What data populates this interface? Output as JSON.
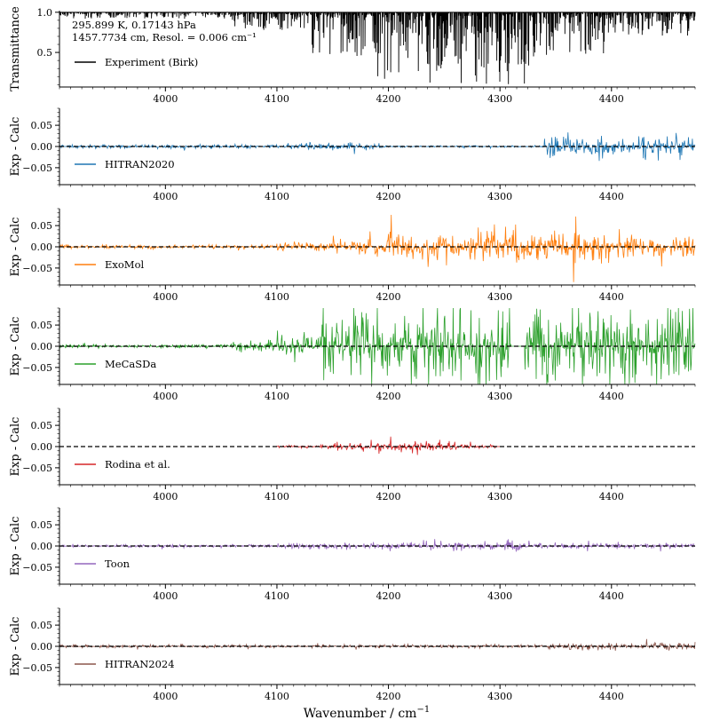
{
  "figure": {
    "xlabel": "Wavenumber / cm",
    "xlabel_sup": "−1"
  },
  "chart_data": [
    {
      "type": "line",
      "title": "",
      "ylabel": "Transmittance",
      "xlim": [
        3905,
        4475
      ],
      "ylim": [
        0.07,
        1.02
      ],
      "yticks": [
        0.5,
        1.0
      ],
      "ytick_labels": [
        "0.5",
        "1.0"
      ],
      "xticks": [
        4000,
        4100,
        4200,
        4300,
        4400
      ],
      "xtick_labels": [
        "4000",
        "4100",
        "4200",
        "4300",
        "4400"
      ],
      "annotation": [
        "295.899 K, 0.17143 hPa",
        "1457.7734 cm, Resol. = 0.006 cm⁻¹"
      ],
      "series": [
        {
          "name": "Experiment (Birk)",
          "color": "#000000",
          "kind": "transmittance",
          "baseline": 1.0,
          "bands": [
            {
              "start": 3905,
              "end": 4060,
              "max_depth": 0.08
            },
            {
              "start": 4060,
              "end": 4130,
              "max_depth": 0.22
            },
            {
              "start": 4130,
              "end": 4180,
              "max_depth": 0.55
            },
            {
              "start": 4180,
              "end": 4260,
              "max_depth": 0.9
            },
            {
              "start": 4260,
              "end": 4330,
              "max_depth": 0.9
            },
            {
              "start": 4330,
              "end": 4400,
              "max_depth": 0.55
            },
            {
              "start": 4400,
              "end": 4475,
              "max_depth": 0.3
            }
          ]
        }
      ]
    },
    {
      "type": "line",
      "ylabel": "Exp - Calc",
      "xlim": [
        3905,
        4475
      ],
      "ylim": [
        -0.09,
        0.09
      ],
      "yticks": [
        -0.05,
        0.0,
        0.05
      ],
      "ytick_labels": [
        "−0.05",
        "0.00",
        "0.05"
      ],
      "xticks": [
        4000,
        4100,
        4200,
        4300,
        4400
      ],
      "xtick_labels": [
        "4000",
        "4100",
        "4200",
        "4300",
        "4400"
      ],
      "series": [
        {
          "name": "HITRAN2020",
          "color": "#1f77b4",
          "kind": "residual",
          "range": [
            3905,
            4475
          ],
          "bands": [
            {
              "start": 3905,
              "end": 4110,
              "amp": 0.006
            },
            {
              "start": 4110,
              "end": 4195,
              "amp": 0.012
            },
            {
              "start": 4195,
              "end": 4340,
              "amp": 0.003
            },
            {
              "start": 4340,
              "end": 4475,
              "amp": 0.04
            }
          ]
        }
      ]
    },
    {
      "type": "line",
      "ylabel": "Exp - Calc",
      "xlim": [
        3905,
        4475
      ],
      "ylim": [
        -0.09,
        0.09
      ],
      "yticks": [
        -0.05,
        0.0,
        0.05
      ],
      "ytick_labels": [
        "−0.05",
        "0.00",
        "0.05"
      ],
      "xticks": [
        4000,
        4100,
        4200,
        4300,
        4400
      ],
      "xtick_labels": [
        "4000",
        "4100",
        "4200",
        "4300",
        "4400"
      ],
      "series": [
        {
          "name": "ExoMol",
          "color": "#ff7f0e",
          "kind": "residual",
          "range": [
            3905,
            4475
          ],
          "bands": [
            {
              "start": 3905,
              "end": 4100,
              "amp": 0.006
            },
            {
              "start": 4100,
              "end": 4150,
              "amp": 0.015
            },
            {
              "start": 4150,
              "end": 4200,
              "amp": 0.03
            },
            {
              "start": 4200,
              "end": 4400,
              "amp": 0.055
            },
            {
              "start": 4400,
              "end": 4475,
              "amp": 0.03
            }
          ]
        }
      ]
    },
    {
      "type": "line",
      "ylabel": "Exp - Calc",
      "xlim": [
        3905,
        4475
      ],
      "ylim": [
        -0.09,
        0.09
      ],
      "yticks": [
        -0.05,
        0.0,
        0.05
      ],
      "ytick_labels": [
        "−0.05",
        "0.00",
        "0.05"
      ],
      "xticks": [
        4000,
        4100,
        4200,
        4300,
        4400
      ],
      "xtick_labels": [
        "4000",
        "4100",
        "4200",
        "4300",
        "4400"
      ],
      "series": [
        {
          "name": "MeCaSDa",
          "color": "#2ca02c",
          "kind": "residual",
          "range": [
            3905,
            4475
          ],
          "bands": [
            {
              "start": 3905,
              "end": 4060,
              "amp": 0.006
            },
            {
              "start": 4060,
              "end": 4100,
              "amp": 0.02
            },
            {
              "start": 4100,
              "end": 4140,
              "amp": 0.045
            },
            {
              "start": 4140,
              "end": 4310,
              "amp": 0.12
            },
            {
              "start": 4310,
              "end": 4322,
              "amp": 0.0
            },
            {
              "start": 4322,
              "end": 4475,
              "amp": 0.12
            }
          ]
        }
      ]
    },
    {
      "type": "line",
      "ylabel": "Exp - Calc",
      "xlim": [
        3905,
        4475
      ],
      "ylim": [
        -0.09,
        0.09
      ],
      "yticks": [
        -0.05,
        0.0,
        0.05
      ],
      "ytick_labels": [
        "−0.05",
        "0.00",
        "0.05"
      ],
      "xticks": [
        4000,
        4100,
        4200,
        4300,
        4400
      ],
      "xtick_labels": [
        "4000",
        "4100",
        "4200",
        "4300",
        "4400"
      ],
      "series": [
        {
          "name": "Rodina et al.",
          "color": "#d62728",
          "kind": "residual",
          "range": [
            4100,
            4300
          ],
          "bands": [
            {
              "start": 4100,
              "end": 4150,
              "amp": 0.005
            },
            {
              "start": 4150,
              "end": 4260,
              "amp": 0.018
            },
            {
              "start": 4260,
              "end": 4300,
              "amp": 0.008
            }
          ]
        }
      ]
    },
    {
      "type": "line",
      "ylabel": "Exp - Calc",
      "xlim": [
        3905,
        4475
      ],
      "ylim": [
        -0.09,
        0.09
      ],
      "yticks": [
        -0.05,
        0.0,
        0.05
      ],
      "ytick_labels": [
        "−0.05",
        "0.00",
        "0.05"
      ],
      "xticks": [
        4000,
        4100,
        4200,
        4300,
        4400
      ],
      "xtick_labels": [
        "4000",
        "4100",
        "4200",
        "4300",
        "4400"
      ],
      "series": [
        {
          "name": "Toon",
          "color": "#9467bd",
          "kind": "residual",
          "range": [
            3905,
            4475
          ],
          "bands": [
            {
              "start": 3905,
              "end": 4100,
              "amp": 0.005
            },
            {
              "start": 4100,
              "end": 4200,
              "amp": 0.01
            },
            {
              "start": 4200,
              "end": 4330,
              "amp": 0.015
            },
            {
              "start": 4330,
              "end": 4475,
              "amp": 0.008
            }
          ]
        }
      ]
    },
    {
      "type": "line",
      "ylabel": "Exp - Calc",
      "xlim": [
        3905,
        4475
      ],
      "ylim": [
        -0.09,
        0.09
      ],
      "yticks": [
        -0.05,
        0.0,
        0.05
      ],
      "ytick_labels": [
        "−0.05",
        "0.00",
        "0.05"
      ],
      "xticks": [
        4000,
        4100,
        4200,
        4300,
        4400
      ],
      "xtick_labels": [
        "4000",
        "4100",
        "4200",
        "4300",
        "4400"
      ],
      "series": [
        {
          "name": "HITRAN2024",
          "color": "#8c564b",
          "kind": "residual",
          "range": [
            3905,
            4475
          ],
          "bands": [
            {
              "start": 3905,
              "end": 4340,
              "amp": 0.005
            },
            {
              "start": 4340,
              "end": 4475,
              "amp": 0.011
            }
          ]
        }
      ]
    }
  ]
}
